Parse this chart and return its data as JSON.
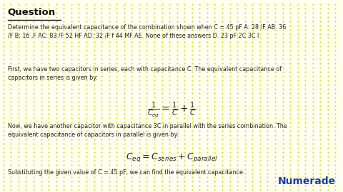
{
  "background_color": "#fffff0",
  "dot_color": "#d4d400",
  "title": "Question",
  "question_text": "Determine the equivalent capacitance of the combination shown when C = 45 pF A: 28 /F AB. 36\n/F B: 16 ,F AC: 83 /F 52 HF AD: 32 /F f 44 MF AE. None of these answers D. 23 pF 2C 3C I",
  "para1": "First, we have two capacitors in series, each with capacitance C. The equivalent capacitance of\ncapacitors in series is given by:",
  "para2": "Now, we have another capacitor with capacitance 3C in parallel with the series combination. The\nequivalent capacitance of capacitors in parallel is given by:",
  "para3": "Substituting the given value of C = 45 pF, we can find the equivalent capacitance.",
  "brand": "Numerade",
  "brand_color": "#1a3faa",
  "text_color": "#222222",
  "title_color": "#111111"
}
